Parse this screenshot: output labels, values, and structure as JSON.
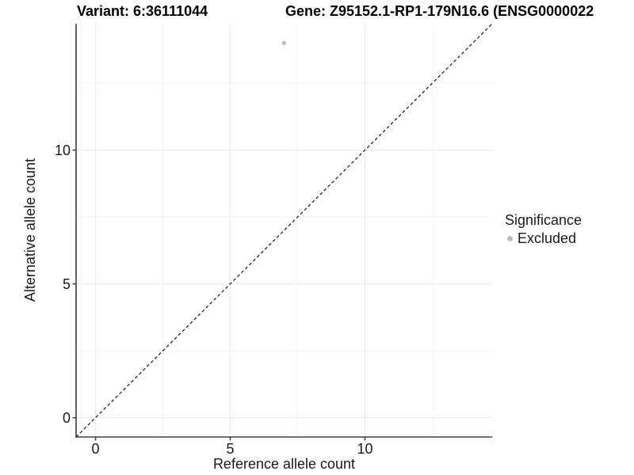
{
  "chart_data": {
    "type": "scatter",
    "title_variant": "Variant: 6:36111044",
    "title_gene": "Gene: Z95152.1-RP1-179N16.6 (ENSG0000022",
    "xlabel": "Reference allele count",
    "ylabel": "Alternative allele count",
    "xlim": [
      -0.72,
      14.72
    ],
    "ylim": [
      -0.72,
      14.72
    ],
    "x_ticks": {
      "major": [
        0,
        5,
        10
      ],
      "labels": [
        "0",
        "5",
        "10"
      ],
      "minor": [
        2.5,
        7.5,
        12.5
      ]
    },
    "y_ticks": {
      "major": [
        0,
        5,
        10
      ],
      "labels": [
        "0",
        "5",
        "10"
      ],
      "minor": [
        2.5,
        7.5,
        12.5
      ]
    },
    "grid": "major+minor",
    "identity_line": {
      "equation": "y = x",
      "style": "dashed"
    },
    "series": [
      {
        "name": "Excluded",
        "marker": "circle",
        "color": "#bcbcbc",
        "points": [
          {
            "x": 7,
            "y": 14
          }
        ]
      }
    ],
    "legend": {
      "title": "Significance",
      "position": "right",
      "items": [
        {
          "label": "Excluded",
          "marker": "circle",
          "color": "#bcbcbc"
        }
      ]
    }
  },
  "colors": {
    "background": "#ffffff",
    "axis_line": "#3e3e3e",
    "tick_mark": "#3e3e3e",
    "grid_major": "#eaeaea",
    "grid_minor": "#f2f2f2",
    "identity_line": "#161616",
    "point": "#bcbcbc",
    "text": "#1a1a1a",
    "title_text": "#000000"
  }
}
